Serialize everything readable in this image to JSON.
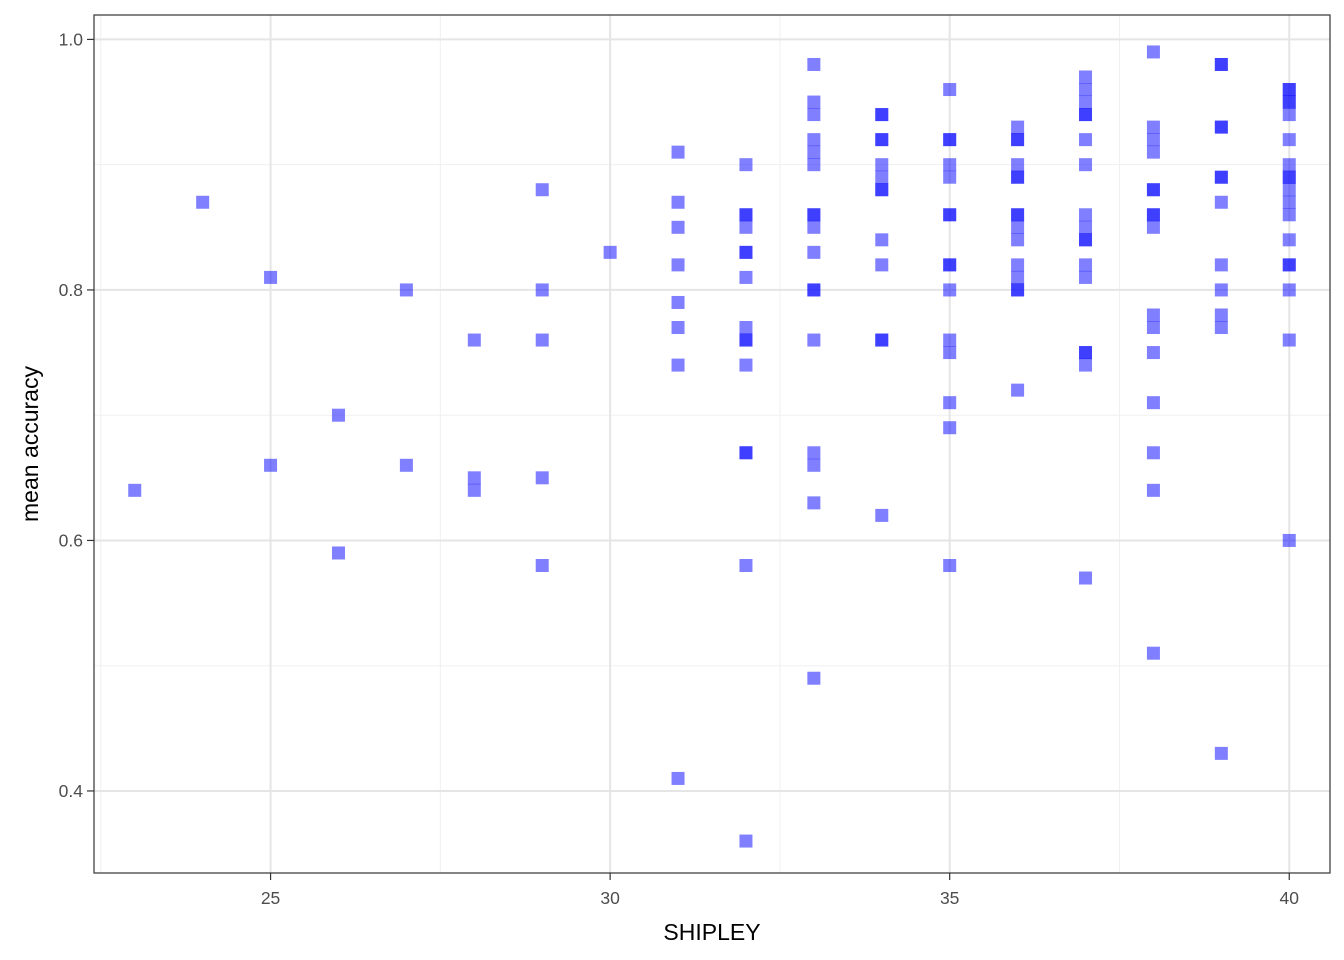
{
  "chart_data": {
    "type": "scatter",
    "title": "",
    "xlabel": "SHIPLEY",
    "ylabel": "mean accuracy",
    "xlim": [
      22.4,
      40.6
    ],
    "ylim": [
      0.3345,
      1.0195
    ],
    "x_ticks": [
      25,
      30,
      35,
      40
    ],
    "x_tick_labels": [
      "25",
      "30",
      "35",
      "40"
    ],
    "y_ticks": [
      0.4,
      0.6,
      0.8,
      1.0
    ],
    "y_tick_labels": [
      "0.4",
      "0.6",
      "0.8",
      "1.0"
    ],
    "x_minor_ticks": [
      22.5,
      27.5,
      32.5,
      37.5
    ],
    "y_minor_ticks": [
      0.5,
      0.7,
      0.9
    ],
    "grid": true,
    "marker": "square",
    "point_color": "#0000ff",
    "point_alpha": 0.5,
    "points": [
      {
        "x": 23,
        "y": 0.64
      },
      {
        "x": 24,
        "y": 0.87
      },
      {
        "x": 25,
        "y": 0.81
      },
      {
        "x": 25,
        "y": 0.66
      },
      {
        "x": 26,
        "y": 0.7
      },
      {
        "x": 26,
        "y": 0.59
      },
      {
        "x": 27,
        "y": 0.8
      },
      {
        "x": 27,
        "y": 0.66
      },
      {
        "x": 28,
        "y": 0.76
      },
      {
        "x": 28,
        "y": 0.65
      },
      {
        "x": 28,
        "y": 0.64
      },
      {
        "x": 29,
        "y": 0.88
      },
      {
        "x": 29,
        "y": 0.8
      },
      {
        "x": 29,
        "y": 0.76
      },
      {
        "x": 29,
        "y": 0.65
      },
      {
        "x": 29,
        "y": 0.58
      },
      {
        "x": 30,
        "y": 0.83
      },
      {
        "x": 31,
        "y": 0.91
      },
      {
        "x": 31,
        "y": 0.87
      },
      {
        "x": 31,
        "y": 0.85
      },
      {
        "x": 31,
        "y": 0.82
      },
      {
        "x": 31,
        "y": 0.79
      },
      {
        "x": 31,
        "y": 0.77
      },
      {
        "x": 31,
        "y": 0.74
      },
      {
        "x": 31,
        "y": 0.41
      },
      {
        "x": 32,
        "y": 0.9
      },
      {
        "x": 32,
        "y": 0.86
      },
      {
        "x": 32,
        "y": 0.86
      },
      {
        "x": 32,
        "y": 0.85
      },
      {
        "x": 32,
        "y": 0.83
      },
      {
        "x": 32,
        "y": 0.83
      },
      {
        "x": 32,
        "y": 0.81
      },
      {
        "x": 32,
        "y": 0.77
      },
      {
        "x": 32,
        "y": 0.76
      },
      {
        "x": 32,
        "y": 0.76
      },
      {
        "x": 32,
        "y": 0.74
      },
      {
        "x": 32,
        "y": 0.67
      },
      {
        "x": 32,
        "y": 0.67
      },
      {
        "x": 32,
        "y": 0.58
      },
      {
        "x": 32,
        "y": 0.36
      },
      {
        "x": 33,
        "y": 0.98
      },
      {
        "x": 33,
        "y": 0.95
      },
      {
        "x": 33,
        "y": 0.94
      },
      {
        "x": 33,
        "y": 0.92
      },
      {
        "x": 33,
        "y": 0.91
      },
      {
        "x": 33,
        "y": 0.9
      },
      {
        "x": 33,
        "y": 0.86
      },
      {
        "x": 33,
        "y": 0.86
      },
      {
        "x": 33,
        "y": 0.85
      },
      {
        "x": 33,
        "y": 0.83
      },
      {
        "x": 33,
        "y": 0.8
      },
      {
        "x": 33,
        "y": 0.8
      },
      {
        "x": 33,
        "y": 0.76
      },
      {
        "x": 33,
        "y": 0.67
      },
      {
        "x": 33,
        "y": 0.66
      },
      {
        "x": 33,
        "y": 0.63
      },
      {
        "x": 33,
        "y": 0.49
      },
      {
        "x": 34,
        "y": 0.94
      },
      {
        "x": 34,
        "y": 0.94
      },
      {
        "x": 34,
        "y": 0.92
      },
      {
        "x": 34,
        "y": 0.92
      },
      {
        "x": 34,
        "y": 0.9
      },
      {
        "x": 34,
        "y": 0.89
      },
      {
        "x": 34,
        "y": 0.88
      },
      {
        "x": 34,
        "y": 0.88
      },
      {
        "x": 34,
        "y": 0.84
      },
      {
        "x": 34,
        "y": 0.82
      },
      {
        "x": 34,
        "y": 0.76
      },
      {
        "x": 34,
        "y": 0.76
      },
      {
        "x": 34,
        "y": 0.62
      },
      {
        "x": 35,
        "y": 0.96
      },
      {
        "x": 35,
        "y": 0.92
      },
      {
        "x": 35,
        "y": 0.92
      },
      {
        "x": 35,
        "y": 0.9
      },
      {
        "x": 35,
        "y": 0.89
      },
      {
        "x": 35,
        "y": 0.86
      },
      {
        "x": 35,
        "y": 0.86
      },
      {
        "x": 35,
        "y": 0.82
      },
      {
        "x": 35,
        "y": 0.82
      },
      {
        "x": 35,
        "y": 0.8
      },
      {
        "x": 35,
        "y": 0.76
      },
      {
        "x": 35,
        "y": 0.75
      },
      {
        "x": 35,
        "y": 0.71
      },
      {
        "x": 35,
        "y": 0.69
      },
      {
        "x": 35,
        "y": 0.58
      },
      {
        "x": 36,
        "y": 0.93
      },
      {
        "x": 36,
        "y": 0.92
      },
      {
        "x": 36,
        "y": 0.92
      },
      {
        "x": 36,
        "y": 0.9
      },
      {
        "x": 36,
        "y": 0.89
      },
      {
        "x": 36,
        "y": 0.89
      },
      {
        "x": 36,
        "y": 0.86
      },
      {
        "x": 36,
        "y": 0.86
      },
      {
        "x": 36,
        "y": 0.85
      },
      {
        "x": 36,
        "y": 0.84
      },
      {
        "x": 36,
        "y": 0.82
      },
      {
        "x": 36,
        "y": 0.81
      },
      {
        "x": 36,
        "y": 0.8
      },
      {
        "x": 36,
        "y": 0.8
      },
      {
        "x": 36,
        "y": 0.72
      },
      {
        "x": 37,
        "y": 0.97
      },
      {
        "x": 37,
        "y": 0.96
      },
      {
        "x": 37,
        "y": 0.95
      },
      {
        "x": 37,
        "y": 0.94
      },
      {
        "x": 37,
        "y": 0.94
      },
      {
        "x": 37,
        "y": 0.92
      },
      {
        "x": 37,
        "y": 0.9
      },
      {
        "x": 37,
        "y": 0.86
      },
      {
        "x": 37,
        "y": 0.85
      },
      {
        "x": 37,
        "y": 0.84
      },
      {
        "x": 37,
        "y": 0.84
      },
      {
        "x": 37,
        "y": 0.82
      },
      {
        "x": 37,
        "y": 0.81
      },
      {
        "x": 37,
        "y": 0.75
      },
      {
        "x": 37,
        "y": 0.75
      },
      {
        "x": 37,
        "y": 0.74
      },
      {
        "x": 37,
        "y": 0.57
      },
      {
        "x": 38,
        "y": 0.99
      },
      {
        "x": 38,
        "y": 0.93
      },
      {
        "x": 38,
        "y": 0.92
      },
      {
        "x": 38,
        "y": 0.91
      },
      {
        "x": 38,
        "y": 0.88
      },
      {
        "x": 38,
        "y": 0.88
      },
      {
        "x": 38,
        "y": 0.86
      },
      {
        "x": 38,
        "y": 0.86
      },
      {
        "x": 38,
        "y": 0.85
      },
      {
        "x": 38,
        "y": 0.78
      },
      {
        "x": 38,
        "y": 0.77
      },
      {
        "x": 38,
        "y": 0.75
      },
      {
        "x": 38,
        "y": 0.71
      },
      {
        "x": 38,
        "y": 0.67
      },
      {
        "x": 38,
        "y": 0.64
      },
      {
        "x": 38,
        "y": 0.51
      },
      {
        "x": 39,
        "y": 0.98
      },
      {
        "x": 39,
        "y": 0.98
      },
      {
        "x": 39,
        "y": 0.93
      },
      {
        "x": 39,
        "y": 0.93
      },
      {
        "x": 39,
        "y": 0.89
      },
      {
        "x": 39,
        "y": 0.89
      },
      {
        "x": 39,
        "y": 0.87
      },
      {
        "x": 39,
        "y": 0.82
      },
      {
        "x": 39,
        "y": 0.8
      },
      {
        "x": 39,
        "y": 0.78
      },
      {
        "x": 39,
        "y": 0.77
      },
      {
        "x": 39,
        "y": 0.43
      },
      {
        "x": 40,
        "y": 0.96
      },
      {
        "x": 40,
        "y": 0.96
      },
      {
        "x": 40,
        "y": 0.95
      },
      {
        "x": 40,
        "y": 0.95
      },
      {
        "x": 40,
        "y": 0.94
      },
      {
        "x": 40,
        "y": 0.92
      },
      {
        "x": 40,
        "y": 0.9
      },
      {
        "x": 40,
        "y": 0.89
      },
      {
        "x": 40,
        "y": 0.89
      },
      {
        "x": 40,
        "y": 0.88
      },
      {
        "x": 40,
        "y": 0.87
      },
      {
        "x": 40,
        "y": 0.86
      },
      {
        "x": 40,
        "y": 0.84
      },
      {
        "x": 40,
        "y": 0.82
      },
      {
        "x": 40,
        "y": 0.82
      },
      {
        "x": 40,
        "y": 0.8
      },
      {
        "x": 40,
        "y": 0.76
      },
      {
        "x": 40,
        "y": 0.6
      }
    ]
  }
}
